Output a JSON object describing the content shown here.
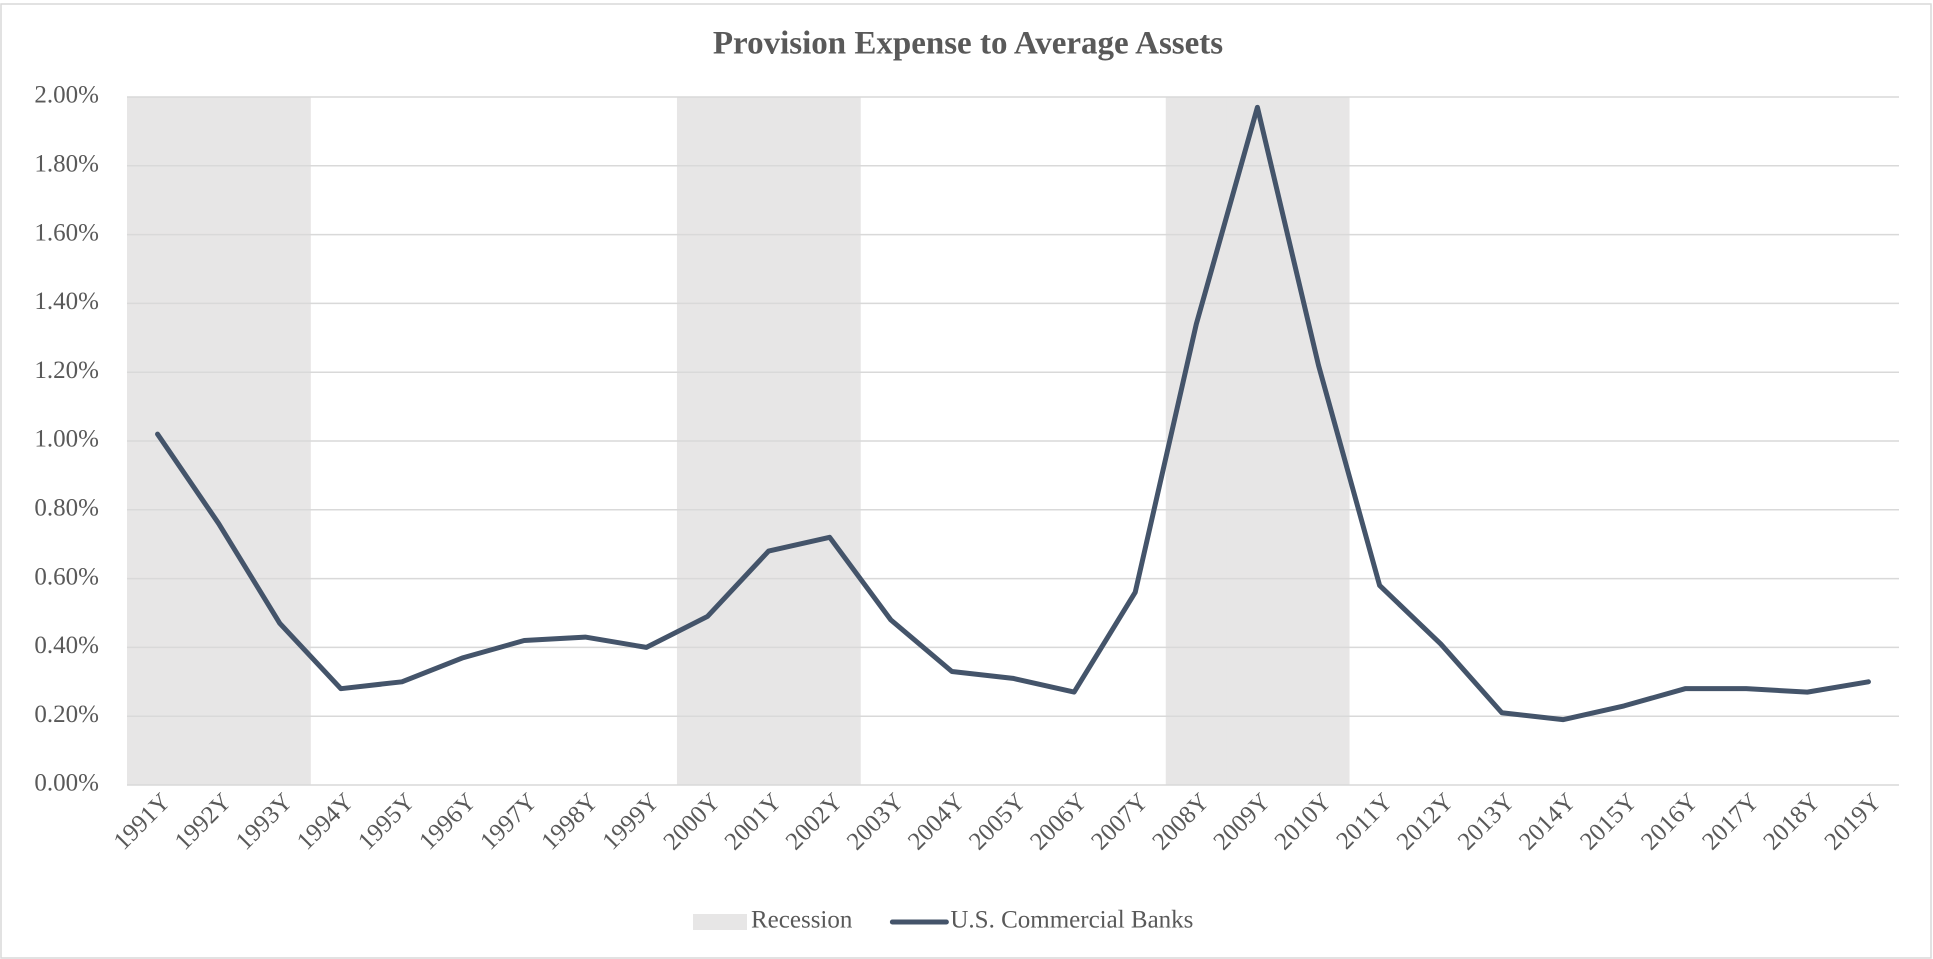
{
  "chart_data": {
    "type": "line",
    "title": "Provision Expense to Average Assets",
    "categories": [
      "1991Y",
      "1992Y",
      "1993Y",
      "1994Y",
      "1995Y",
      "1996Y",
      "1997Y",
      "1998Y",
      "1999Y",
      "2000Y",
      "2001Y",
      "2002Y",
      "2003Y",
      "2004Y",
      "2005Y",
      "2006Y",
      "2007Y",
      "2008Y",
      "2009Y",
      "2010Y",
      "2011Y",
      "2012Y",
      "2013Y",
      "2014Y",
      "2015Y",
      "2016Y",
      "2017Y",
      "2018Y",
      "2019Y"
    ],
    "series": [
      {
        "name": "Recession",
        "type": "bar",
        "color": "#e7e6e6",
        "values": [
          2,
          2,
          2,
          0,
          0,
          0,
          0,
          0,
          0,
          2,
          2,
          2,
          0,
          0,
          0,
          0,
          0,
          2,
          2,
          2,
          0,
          0,
          0,
          0,
          0,
          0,
          0,
          0,
          0
        ]
      },
      {
        "name": "U.S. Commercial Banks",
        "type": "line",
        "color": "#44546a",
        "values": [
          1.02,
          0.76,
          0.47,
          0.28,
          0.3,
          0.37,
          0.42,
          0.43,
          0.4,
          0.49,
          0.68,
          0.72,
          0.48,
          0.33,
          0.31,
          0.27,
          0.56,
          1.34,
          1.97,
          1.22,
          0.58,
          0.41,
          0.21,
          0.19,
          0.23,
          0.28,
          0.28,
          0.27,
          0.3
        ]
      }
    ],
    "ylim": [
      0,
      2
    ],
    "yticks": [
      {
        "value": 0,
        "label": "0.00%"
      },
      {
        "value": 0.2,
        "label": "0.20%"
      },
      {
        "value": 0.4,
        "label": "0.40%"
      },
      {
        "value": 0.6,
        "label": "0.60%"
      },
      {
        "value": 0.8,
        "label": "0.80%"
      },
      {
        "value": 1,
        "label": "1.00%"
      },
      {
        "value": 1.2,
        "label": "1.20%"
      },
      {
        "value": 1.4,
        "label": "1.40%"
      },
      {
        "value": 1.6,
        "label": "1.60%"
      },
      {
        "value": 1.8,
        "label": "1.80%"
      },
      {
        "value": 2,
        "label": "2.00%"
      }
    ],
    "grid": true,
    "legend": "bottom"
  }
}
